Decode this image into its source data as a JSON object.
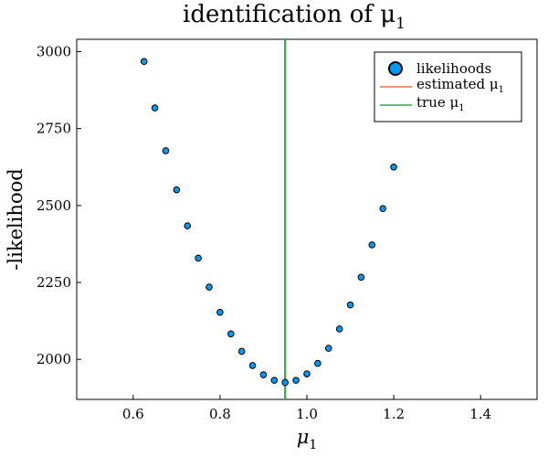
{
  "chart_data": {
    "type": "scatter",
    "title": "identification of μ",
    "title_subscript": "1",
    "xlabel": "μ",
    "xlabel_subscript": "1",
    "ylabel": "-likelihood",
    "xlim": [
      0.47,
      1.53
    ],
    "ylim": [
      1870,
      3040
    ],
    "xticks": [
      0.6,
      0.8,
      1.0,
      1.2,
      1.4
    ],
    "xtick_labels": [
      "0.6",
      "0.8",
      "1.0",
      "1.2",
      "1.4"
    ],
    "yticks": [
      2000,
      2250,
      2500,
      2750,
      3000
    ],
    "ytick_labels": [
      "2000",
      "2250",
      "2500",
      "2750",
      "3000"
    ],
    "grid": false,
    "legend_position": "top-right",
    "series": [
      {
        "name": "likelihoods",
        "kind": "scatter",
        "color": "#009af9",
        "x": [
          0.625,
          0.65,
          0.675,
          0.7,
          0.725,
          0.75,
          0.775,
          0.8,
          0.825,
          0.85,
          0.875,
          0.9,
          0.925,
          0.95,
          0.975,
          1.0,
          1.025,
          1.05,
          1.075,
          1.1,
          1.125,
          1.15,
          1.175,
          1.2
        ],
        "y": [
          2968,
          2817,
          2678,
          2551,
          2434,
          2329,
          2235,
          2153,
          2083,
          2026,
          1980,
          1950,
          1932,
          1925,
          1932,
          1953,
          1987,
          2036,
          2099,
          2177,
          2267,
          2372,
          2490,
          2625
        ]
      },
      {
        "name": "estimated μ",
        "name_subscript": "1",
        "kind": "vline",
        "color": "#e26f46",
        "x": 0.95
      },
      {
        "name": "true μ",
        "name_subscript": "1",
        "kind": "vline",
        "color": "#3da44d",
        "x": 0.95
      }
    ]
  }
}
